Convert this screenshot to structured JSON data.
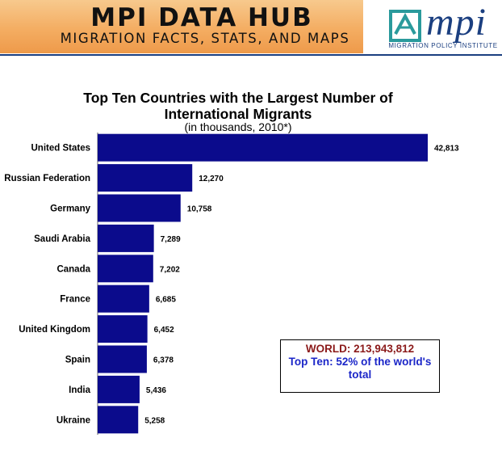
{
  "header": {
    "title": "MPI DATA HUB",
    "subtitle": "MIGRATION FACTS, STATS, AND MAPS",
    "logo_text": "mpi",
    "logo_subtitle": "MIGRATION POLICY INSTITUTE"
  },
  "colors": {
    "bar": "#0b0b8c",
    "accent_red": "#8b1a1a",
    "accent_blue": "#1b26c8",
    "banner": "#f4ad62"
  },
  "chart_data": {
    "type": "bar",
    "orientation": "horizontal",
    "title": "Top Ten Countries with the Largest Number of International Migrants",
    "subtitle": "(in thousands, 2010*)",
    "categories": [
      "United States",
      "Russian Federation",
      "Germany",
      "Saudi Arabia",
      "Canada",
      "France",
      "United Kingdom",
      "Spain",
      "India",
      "Ukraine"
    ],
    "values": [
      42813,
      12270,
      10758,
      7289,
      7202,
      6685,
      6452,
      6378,
      5436,
      5258
    ],
    "value_labels": [
      "42,813",
      "12,270",
      "10,758",
      "7,289",
      "7,202",
      "6,685",
      "6,452",
      "6,378",
      "5,436",
      "5,258"
    ],
    "xlim": [
      0,
      43000
    ],
    "grid": false,
    "legend": "none"
  },
  "worldbox": {
    "world": "WORLD: 213,943,812",
    "topten": "Top Ten: 52% of the world's total"
  }
}
